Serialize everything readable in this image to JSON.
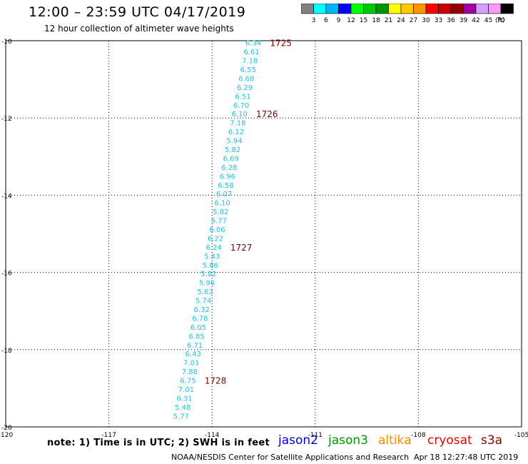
{
  "header": {
    "title": "12:00 – 23:59 UTC 04/17/2019",
    "subtitle": "12 hour collection of altimeter wave heights"
  },
  "colorbar": {
    "unit": "(ft)",
    "bins": [
      {
        "label": "3",
        "color": "#808080"
      },
      {
        "label": "6",
        "color": "#00ffff"
      },
      {
        "label": "9",
        "color": "#00b4ff"
      },
      {
        "label": "12",
        "color": "#0000ff"
      },
      {
        "label": "15",
        "color": "#00ff00"
      },
      {
        "label": "18",
        "color": "#00c800"
      },
      {
        "label": "21",
        "color": "#009600"
      },
      {
        "label": "24",
        "color": "#ffff00"
      },
      {
        "label": "27",
        "color": "#ffc800"
      },
      {
        "label": "30",
        "color": "#ff9600"
      },
      {
        "label": "33",
        "color": "#ff0000"
      },
      {
        "label": "36",
        "color": "#c80000"
      },
      {
        "label": "39",
        "color": "#960000"
      },
      {
        "label": "42",
        "color": "#a000a0"
      },
      {
        "label": "45",
        "color": "#d2a0ff"
      },
      {
        "label": "70",
        "color": "#ff96ff"
      },
      {
        "label": "",
        "color": "#000000"
      }
    ]
  },
  "chart_data": {
    "type": "scatter",
    "xlabel": "",
    "ylabel": "",
    "xlim": [
      -120,
      -105
    ],
    "ylim": [
      -20,
      -10
    ],
    "x_ticks": [
      -120,
      -117,
      -114,
      -111,
      -108,
      -105
    ],
    "y_ticks": [
      -10,
      -12,
      -14,
      -16,
      -18,
      -20
    ],
    "x_tick_labels": [
      "-120",
      "-117",
      "-114",
      "-111",
      "-108",
      "-105"
    ],
    "y_tick_labels": [
      "-10",
      "-12",
      "-14",
      "-16",
      "-18",
      "-20"
    ],
    "grid": true,
    "point_color": "#22c0e8",
    "label_color": "#7a0000",
    "points": [
      {
        "x": -112.8,
        "y": -10.05,
        "swh": "6.34"
      },
      {
        "x": -112.85,
        "y": -10.28,
        "swh": "6.61"
      },
      {
        "x": -112.9,
        "y": -10.51,
        "swh": "7.18"
      },
      {
        "x": -112.95,
        "y": -10.74,
        "swh": "6.55"
      },
      {
        "x": -113.0,
        "y": -10.97,
        "swh": "6.68"
      },
      {
        "x": -113.05,
        "y": -11.2,
        "swh": "6.29"
      },
      {
        "x": -113.1,
        "y": -11.43,
        "swh": "6.51"
      },
      {
        "x": -113.15,
        "y": -11.66,
        "swh": "6.70"
      },
      {
        "x": -113.2,
        "y": -11.89,
        "swh": "6.10"
      },
      {
        "x": -113.25,
        "y": -12.12,
        "swh": "7.18"
      },
      {
        "x": -113.3,
        "y": -12.35,
        "swh": "6.12"
      },
      {
        "x": -113.35,
        "y": -12.58,
        "swh": "5.94"
      },
      {
        "x": -113.4,
        "y": -12.81,
        "swh": "5.82"
      },
      {
        "x": -113.45,
        "y": -13.04,
        "swh": "6.69"
      },
      {
        "x": -113.5,
        "y": -13.27,
        "swh": "6.28"
      },
      {
        "x": -113.55,
        "y": -13.5,
        "swh": "6.96"
      },
      {
        "x": -113.6,
        "y": -13.73,
        "swh": "6.58"
      },
      {
        "x": -113.65,
        "y": -13.96,
        "swh": "6.07"
      },
      {
        "x": -113.7,
        "y": -14.19,
        "swh": "6.10"
      },
      {
        "x": -113.75,
        "y": -14.42,
        "swh": "5.82"
      },
      {
        "x": -113.8,
        "y": -14.65,
        "swh": "5.77"
      },
      {
        "x": -113.85,
        "y": -14.88,
        "swh": "6.06"
      },
      {
        "x": -113.9,
        "y": -15.11,
        "swh": "6.22"
      },
      {
        "x": -113.95,
        "y": -15.34,
        "swh": "6.24"
      },
      {
        "x": -114.0,
        "y": -15.57,
        "swh": "5.43"
      },
      {
        "x": -114.05,
        "y": -15.8,
        "swh": "5.86"
      },
      {
        "x": -114.1,
        "y": -16.03,
        "swh": "5.82"
      },
      {
        "x": -114.15,
        "y": -16.26,
        "swh": "5.96"
      },
      {
        "x": -114.2,
        "y": -16.49,
        "swh": "5.63"
      },
      {
        "x": -114.25,
        "y": -16.72,
        "swh": "5.74"
      },
      {
        "x": -114.3,
        "y": -16.95,
        "swh": "6.32"
      },
      {
        "x": -114.35,
        "y": -17.18,
        "swh": "6.78"
      },
      {
        "x": -114.4,
        "y": -17.41,
        "swh": "6.05"
      },
      {
        "x": -114.45,
        "y": -17.64,
        "swh": "6.85"
      },
      {
        "x": -114.5,
        "y": -17.87,
        "swh": "6.71"
      },
      {
        "x": -114.55,
        "y": -18.1,
        "swh": "6.43"
      },
      {
        "x": -114.6,
        "y": -18.33,
        "swh": "7.01"
      },
      {
        "x": -114.65,
        "y": -18.56,
        "swh": "7.88"
      },
      {
        "x": -114.7,
        "y": -18.79,
        "swh": "6.75"
      },
      {
        "x": -114.75,
        "y": -19.02,
        "swh": "7.01"
      },
      {
        "x": -114.8,
        "y": -19.25,
        "swh": "6.31"
      },
      {
        "x": -114.85,
        "y": -19.48,
        "swh": "5.48"
      },
      {
        "x": -114.9,
        "y": -19.71,
        "swh": "5.77"
      }
    ],
    "time_labels": [
      {
        "x": -112.0,
        "y": -10.05,
        "text": "1725"
      },
      {
        "x": -112.4,
        "y": -11.89,
        "text": "1726"
      },
      {
        "x": -113.15,
        "y": -15.34,
        "text": "1727"
      },
      {
        "x": -113.9,
        "y": -18.79,
        "text": "1728"
      }
    ]
  },
  "footer": {
    "note": "note: 1) Time is in UTC; 2) SWH is in feet",
    "satellites": [
      {
        "name": "jason2",
        "color": "#0000cc"
      },
      {
        "name": "jason3",
        "color": "#009600"
      },
      {
        "name": "altika",
        "color": "#ff8c00"
      },
      {
        "name": "cryosat",
        "color": "#e00000"
      },
      {
        "name": "s3a",
        "color": "#8b0000"
      }
    ],
    "credit": "NOAA/NESDIS Center for Satellite Applications and Research",
    "timestamp": "Apr 18 12:27:48 UTC 2019"
  }
}
